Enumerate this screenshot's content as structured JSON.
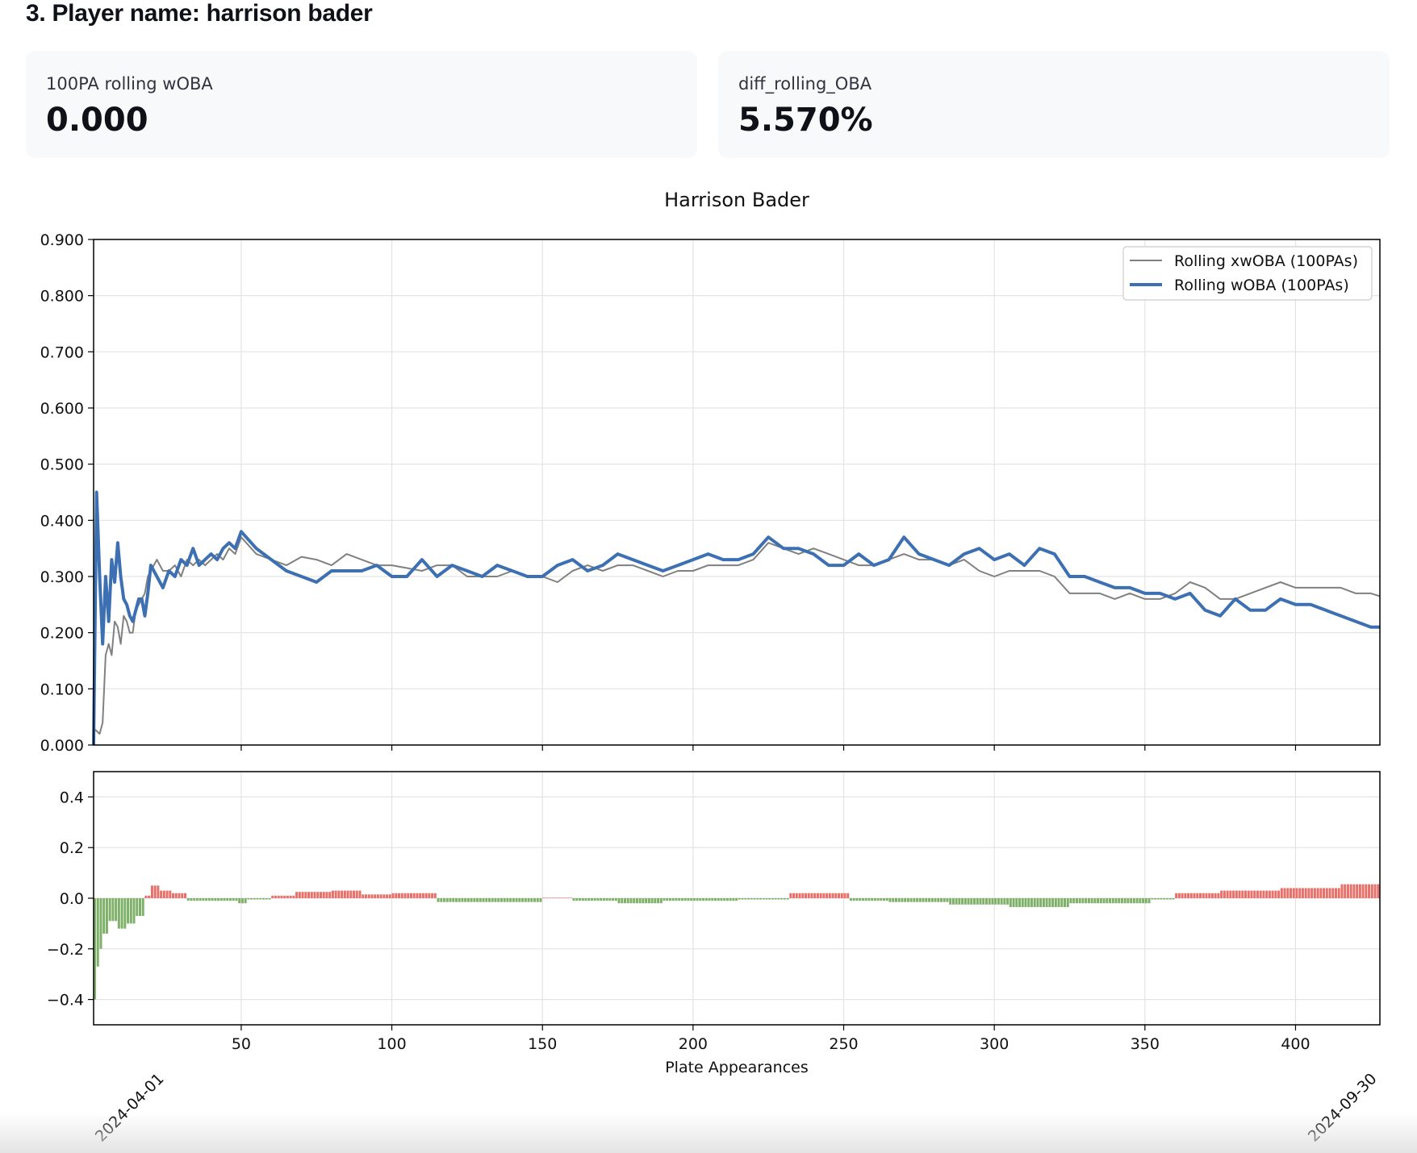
{
  "header": {
    "title": "3. Player name: harrison bader"
  },
  "metrics": [
    {
      "label": "100PA rolling wOBA",
      "value": "0.000"
    },
    {
      "label": "diff_rolling_OBA",
      "value": "5.570%"
    }
  ],
  "colors": {
    "xwoba_line": "#808080",
    "woba_line": "#3d70b2",
    "diff_positive": "#e8706a",
    "diff_negative": "#7fb069",
    "card_bg": "#f8f9fb"
  },
  "chart_data": [
    {
      "type": "line",
      "title": "Harrison Bader",
      "xlim": [
        1,
        428
      ],
      "ylim": [
        0,
        0.9
      ],
      "yticks": [
        "0.000",
        "0.100",
        "0.200",
        "0.300",
        "0.400",
        "0.500",
        "0.600",
        "0.700",
        "0.800",
        "0.900"
      ],
      "grid": true,
      "legend_position": "upper-right",
      "series": [
        {
          "name": "Rolling xwOBA (100PAs)",
          "x": [
            1,
            2,
            3,
            4,
            5,
            6,
            7,
            8,
            9,
            10,
            11,
            12,
            13,
            14,
            15,
            16,
            17,
            18,
            19,
            20,
            22,
            24,
            26,
            28,
            30,
            32,
            34,
            36,
            38,
            40,
            42,
            44,
            46,
            48,
            50,
            55,
            60,
            65,
            70,
            75,
            80,
            85,
            90,
            95,
            100,
            105,
            110,
            115,
            120,
            125,
            130,
            135,
            140,
            145,
            150,
            155,
            160,
            165,
            170,
            175,
            180,
            185,
            190,
            195,
            200,
            205,
            210,
            215,
            220,
            225,
            230,
            235,
            240,
            245,
            250,
            255,
            260,
            265,
            270,
            275,
            280,
            285,
            290,
            295,
            300,
            305,
            310,
            315,
            320,
            325,
            330,
            335,
            340,
            345,
            350,
            355,
            360,
            365,
            370,
            375,
            380,
            385,
            390,
            395,
            400,
            405,
            410,
            415,
            420,
            425,
            428
          ],
          "values": [
            0.03,
            0.025,
            0.02,
            0.04,
            0.16,
            0.18,
            0.16,
            0.22,
            0.21,
            0.18,
            0.23,
            0.22,
            0.2,
            0.2,
            0.24,
            0.25,
            0.26,
            0.27,
            0.3,
            0.31,
            0.33,
            0.31,
            0.31,
            0.32,
            0.3,
            0.33,
            0.32,
            0.33,
            0.32,
            0.33,
            0.34,
            0.33,
            0.35,
            0.34,
            0.37,
            0.34,
            0.33,
            0.32,
            0.335,
            0.33,
            0.32,
            0.34,
            0.33,
            0.32,
            0.32,
            0.315,
            0.31,
            0.32,
            0.32,
            0.3,
            0.3,
            0.3,
            0.31,
            0.3,
            0.3,
            0.29,
            0.31,
            0.32,
            0.31,
            0.32,
            0.32,
            0.31,
            0.3,
            0.31,
            0.31,
            0.32,
            0.32,
            0.32,
            0.33,
            0.36,
            0.35,
            0.34,
            0.35,
            0.34,
            0.33,
            0.32,
            0.32,
            0.33,
            0.34,
            0.33,
            0.33,
            0.32,
            0.33,
            0.31,
            0.3,
            0.31,
            0.31,
            0.31,
            0.3,
            0.27,
            0.27,
            0.27,
            0.26,
            0.27,
            0.26,
            0.26,
            0.27,
            0.29,
            0.28,
            0.26,
            0.26,
            0.27,
            0.28,
            0.29,
            0.28,
            0.28,
            0.28,
            0.28,
            0.27,
            0.27,
            0.265
          ]
        },
        {
          "name": "Rolling wOBA (100PAs)",
          "x": [
            1,
            2,
            3,
            4,
            5,
            6,
            7,
            8,
            9,
            10,
            11,
            12,
            13,
            14,
            15,
            16,
            17,
            18,
            19,
            20,
            22,
            24,
            26,
            28,
            30,
            32,
            34,
            36,
            38,
            40,
            42,
            44,
            46,
            48,
            50,
            55,
            60,
            65,
            70,
            75,
            80,
            85,
            90,
            95,
            100,
            105,
            110,
            115,
            120,
            125,
            130,
            135,
            140,
            145,
            150,
            155,
            160,
            165,
            170,
            175,
            180,
            185,
            190,
            195,
            200,
            205,
            210,
            215,
            220,
            225,
            230,
            235,
            240,
            245,
            250,
            255,
            260,
            265,
            270,
            275,
            280,
            285,
            290,
            295,
            300,
            305,
            310,
            315,
            320,
            325,
            330,
            335,
            340,
            345,
            350,
            355,
            360,
            365,
            370,
            375,
            380,
            385,
            390,
            395,
            400,
            405,
            410,
            415,
            420,
            425,
            428
          ],
          "values": [
            0.0,
            0.45,
            0.3,
            0.18,
            0.3,
            0.22,
            0.33,
            0.29,
            0.36,
            0.3,
            0.26,
            0.25,
            0.23,
            0.22,
            0.24,
            0.26,
            0.26,
            0.23,
            0.27,
            0.32,
            0.3,
            0.28,
            0.31,
            0.3,
            0.33,
            0.32,
            0.35,
            0.32,
            0.33,
            0.34,
            0.33,
            0.35,
            0.36,
            0.35,
            0.38,
            0.35,
            0.33,
            0.31,
            0.3,
            0.29,
            0.31,
            0.31,
            0.31,
            0.32,
            0.3,
            0.3,
            0.33,
            0.3,
            0.32,
            0.31,
            0.3,
            0.32,
            0.31,
            0.3,
            0.3,
            0.32,
            0.33,
            0.31,
            0.32,
            0.34,
            0.33,
            0.32,
            0.31,
            0.32,
            0.33,
            0.34,
            0.33,
            0.33,
            0.34,
            0.37,
            0.35,
            0.35,
            0.34,
            0.32,
            0.32,
            0.34,
            0.32,
            0.33,
            0.37,
            0.34,
            0.33,
            0.32,
            0.34,
            0.35,
            0.33,
            0.34,
            0.32,
            0.35,
            0.34,
            0.3,
            0.3,
            0.29,
            0.28,
            0.28,
            0.27,
            0.27,
            0.26,
            0.27,
            0.24,
            0.23,
            0.26,
            0.24,
            0.24,
            0.26,
            0.25,
            0.25,
            0.24,
            0.23,
            0.22,
            0.21,
            0.21
          ]
        }
      ]
    },
    {
      "type": "bar",
      "xlim": [
        1,
        428
      ],
      "ylim": [
        -0.5,
        0.5
      ],
      "yticks": [
        "−0.4",
        "−0.2",
        "0.0",
        "0.2",
        "0.4"
      ],
      "xticks": [
        "50",
        "100",
        "150",
        "200",
        "250",
        "300",
        "350",
        "400"
      ],
      "xlabel": "Plate Appearances",
      "date_labels": [
        "2024-04-01",
        "2024-09-30"
      ],
      "grid": true,
      "segments": [
        {
          "x_start": 1,
          "x_end": 2,
          "value": -0.4
        },
        {
          "x_start": 2,
          "x_end": 3,
          "value": -0.27
        },
        {
          "x_start": 3,
          "x_end": 4,
          "value": -0.2
        },
        {
          "x_start": 4,
          "x_end": 6,
          "value": -0.14
        },
        {
          "x_start": 6,
          "x_end": 9,
          "value": -0.09
        },
        {
          "x_start": 9,
          "x_end": 12,
          "value": -0.12
        },
        {
          "x_start": 12,
          "x_end": 15,
          "value": -0.1
        },
        {
          "x_start": 15,
          "x_end": 18,
          "value": -0.07
        },
        {
          "x_start": 18,
          "x_end": 20,
          "value": 0.01
        },
        {
          "x_start": 20,
          "x_end": 23,
          "value": 0.05
        },
        {
          "x_start": 23,
          "x_end": 27,
          "value": 0.03
        },
        {
          "x_start": 27,
          "x_end": 32,
          "value": 0.02
        },
        {
          "x_start": 32,
          "x_end": 35,
          "value": -0.01
        },
        {
          "x_start": 35,
          "x_end": 49,
          "value": -0.01
        },
        {
          "x_start": 49,
          "x_end": 52,
          "value": -0.02
        },
        {
          "x_start": 52,
          "x_end": 60,
          "value": -0.005
        },
        {
          "x_start": 60,
          "x_end": 68,
          "value": 0.01
        },
        {
          "x_start": 68,
          "x_end": 80,
          "value": 0.025
        },
        {
          "x_start": 80,
          "x_end": 90,
          "value": 0.03
        },
        {
          "x_start": 90,
          "x_end": 100,
          "value": 0.015
        },
        {
          "x_start": 100,
          "x_end": 115,
          "value": 0.02
        },
        {
          "x_start": 115,
          "x_end": 150,
          "value": -0.015
        },
        {
          "x_start": 150,
          "x_end": 160,
          "value": 0.002
        },
        {
          "x_start": 160,
          "x_end": 175,
          "value": -0.01
        },
        {
          "x_start": 175,
          "x_end": 190,
          "value": -0.02
        },
        {
          "x_start": 190,
          "x_end": 215,
          "value": -0.01
        },
        {
          "x_start": 215,
          "x_end": 232,
          "value": -0.005
        },
        {
          "x_start": 232,
          "x_end": 252,
          "value": 0.02
        },
        {
          "x_start": 252,
          "x_end": 265,
          "value": -0.01
        },
        {
          "x_start": 265,
          "x_end": 285,
          "value": -0.015
        },
        {
          "x_start": 285,
          "x_end": 305,
          "value": -0.025
        },
        {
          "x_start": 305,
          "x_end": 325,
          "value": -0.035
        },
        {
          "x_start": 325,
          "x_end": 352,
          "value": -0.02
        },
        {
          "x_start": 352,
          "x_end": 360,
          "value": -0.005
        },
        {
          "x_start": 360,
          "x_end": 375,
          "value": 0.02
        },
        {
          "x_start": 375,
          "x_end": 395,
          "value": 0.03
        },
        {
          "x_start": 395,
          "x_end": 415,
          "value": 0.04
        },
        {
          "x_start": 415,
          "x_end": 428,
          "value": 0.055
        }
      ]
    }
  ]
}
